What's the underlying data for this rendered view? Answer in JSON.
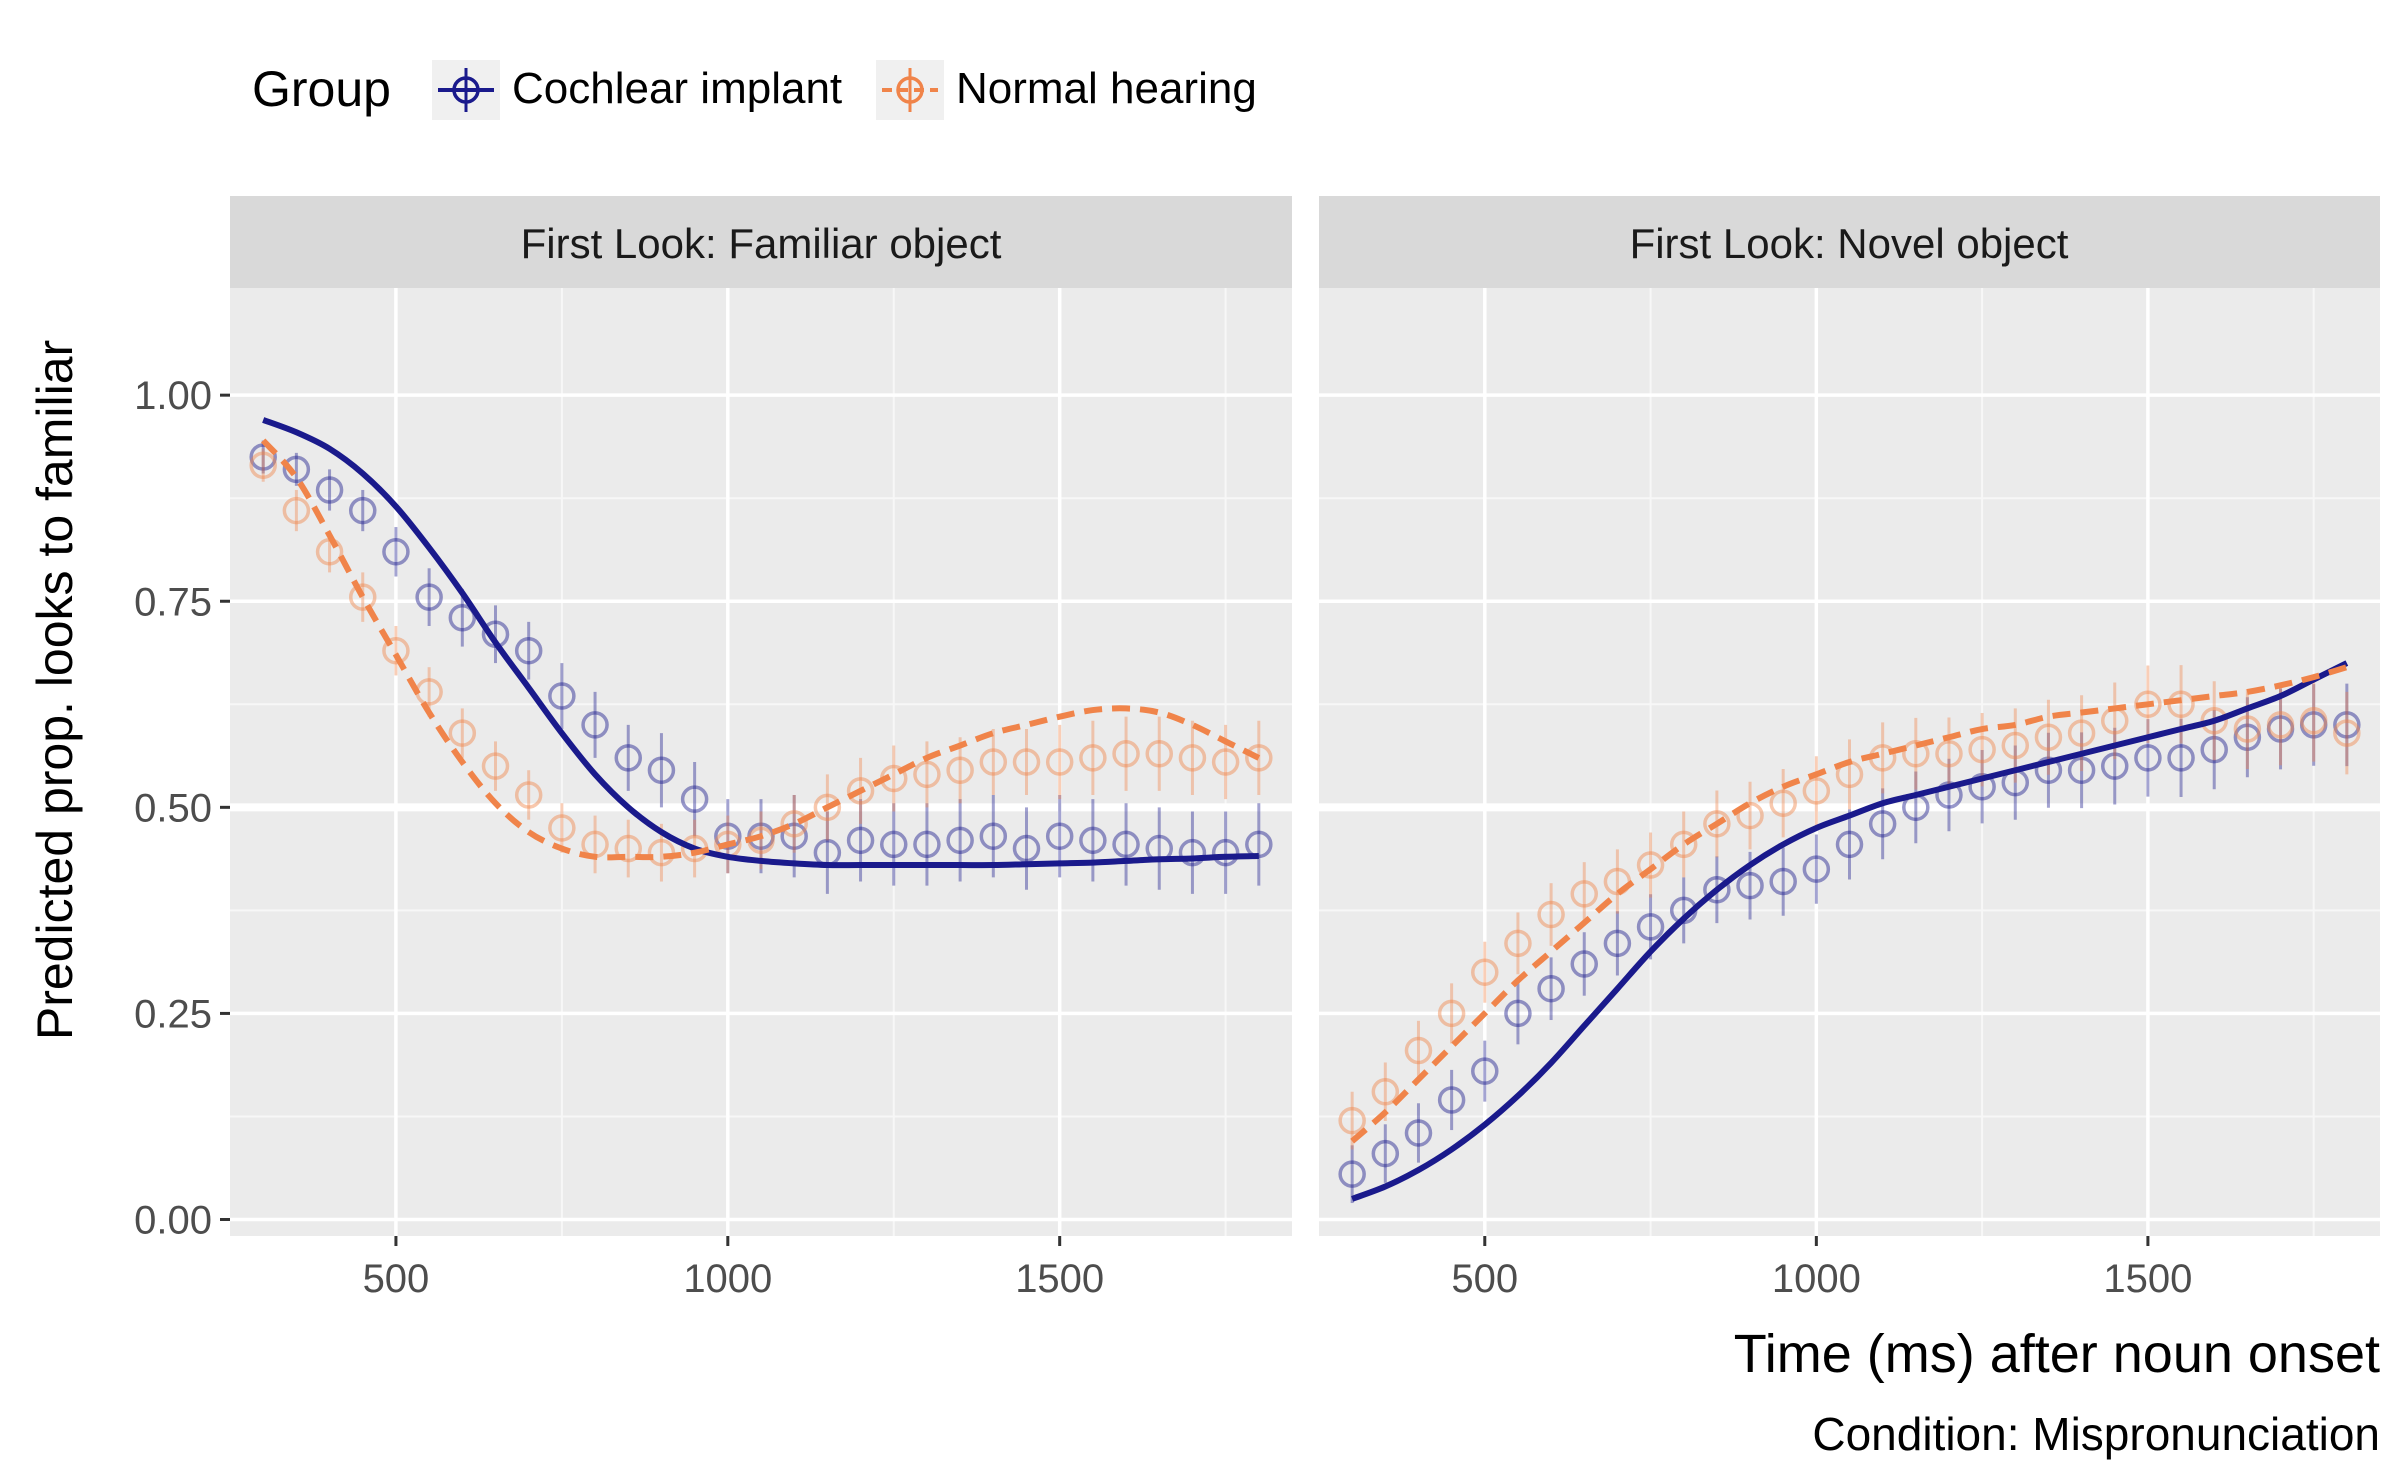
{
  "legend": {
    "title": "Group",
    "items": [
      {
        "label": "Cochlear implant",
        "color": "#1a1a8c",
        "dash": "solid"
      },
      {
        "label": "Normal hearing",
        "color": "#f0844a",
        "dash": "dashed"
      }
    ]
  },
  "ylabel": "Predicted prop. looks to familiar",
  "xlabel": "Time (ms) after noun onset",
  "caption": "Condition: Mispronunciation",
  "chart_data": [
    {
      "type": "line",
      "panel": "First Look: Familiar object",
      "xlim": [
        250,
        1850
      ],
      "ylim": [
        -0.02,
        1.13
      ],
      "xticks": [
        500,
        1000,
        1500
      ],
      "xtick_labels": [
        "500",
        "1000",
        "1500"
      ],
      "yticks": [
        0,
        0.25,
        0.5,
        0.75,
        1.0
      ],
      "ytick_labels": [
        "0.00",
        "0.25",
        "0.50",
        "0.75",
        "1.00"
      ],
      "grid": true,
      "observed": [
        {
          "name": "Cochlear implant",
          "x": [
            300,
            350,
            400,
            450,
            500,
            550,
            600,
            650,
            700,
            750,
            800,
            850,
            900,
            950,
            1000,
            1050,
            1100,
            1150,
            1200,
            1250,
            1300,
            1350,
            1400,
            1450,
            1500,
            1550,
            1600,
            1650,
            1700,
            1750,
            1800
          ],
          "y": [
            0.925,
            0.91,
            0.885,
            0.86,
            0.81,
            0.755,
            0.73,
            0.71,
            0.69,
            0.635,
            0.6,
            0.56,
            0.545,
            0.51,
            0.465,
            0.465,
            0.465,
            0.445,
            0.46,
            0.455,
            0.455,
            0.46,
            0.465,
            0.45,
            0.465,
            0.46,
            0.455,
            0.45,
            0.445,
            0.445,
            0.455
          ],
          "err": [
            0.02,
            0.02,
            0.025,
            0.025,
            0.03,
            0.035,
            0.035,
            0.035,
            0.035,
            0.04,
            0.04,
            0.04,
            0.045,
            0.045,
            0.045,
            0.045,
            0.05,
            0.05,
            0.05,
            0.05,
            0.05,
            0.05,
            0.05,
            0.05,
            0.05,
            0.05,
            0.05,
            0.05,
            0.05,
            0.05,
            0.05
          ]
        },
        {
          "name": "Normal hearing",
          "x": [
            300,
            350,
            400,
            450,
            500,
            550,
            600,
            650,
            700,
            750,
            800,
            850,
            900,
            950,
            1000,
            1050,
            1100,
            1150,
            1200,
            1250,
            1300,
            1350,
            1400,
            1450,
            1500,
            1550,
            1600,
            1650,
            1700,
            1750,
            1800
          ],
          "y": [
            0.915,
            0.86,
            0.81,
            0.755,
            0.69,
            0.64,
            0.59,
            0.55,
            0.515,
            0.475,
            0.455,
            0.45,
            0.445,
            0.45,
            0.455,
            0.46,
            0.48,
            0.5,
            0.52,
            0.535,
            0.54,
            0.545,
            0.555,
            0.555,
            0.555,
            0.56,
            0.565,
            0.565,
            0.56,
            0.555,
            0.56
          ],
          "err": [
            0.02,
            0.025,
            0.025,
            0.03,
            0.03,
            0.03,
            0.03,
            0.03,
            0.03,
            0.03,
            0.035,
            0.035,
            0.035,
            0.035,
            0.035,
            0.035,
            0.035,
            0.04,
            0.04,
            0.04,
            0.04,
            0.04,
            0.04,
            0.04,
            0.045,
            0.045,
            0.045,
            0.045,
            0.045,
            0.045,
            0.045
          ]
        }
      ],
      "fitted": [
        {
          "name": "Cochlear implant",
          "x": [
            300,
            350,
            400,
            450,
            500,
            550,
            600,
            650,
            700,
            750,
            800,
            850,
            900,
            950,
            1000,
            1050,
            1100,
            1150,
            1200,
            1250,
            1300,
            1350,
            1400,
            1450,
            1500,
            1550,
            1600,
            1650,
            1700,
            1750,
            1800
          ],
          "y": [
            0.97,
            0.955,
            0.935,
            0.905,
            0.865,
            0.815,
            0.76,
            0.7,
            0.645,
            0.59,
            0.54,
            0.5,
            0.47,
            0.45,
            0.44,
            0.435,
            0.432,
            0.43,
            0.43,
            0.43,
            0.43,
            0.43,
            0.43,
            0.431,
            0.432,
            0.433,
            0.435,
            0.437,
            0.438,
            0.44,
            0.441
          ]
        },
        {
          "name": "Normal hearing",
          "x": [
            300,
            350,
            400,
            450,
            500,
            550,
            600,
            650,
            700,
            750,
            800,
            850,
            900,
            950,
            1000,
            1050,
            1100,
            1150,
            1200,
            1250,
            1300,
            1350,
            1400,
            1450,
            1500,
            1550,
            1600,
            1650,
            1700,
            1750,
            1800
          ],
          "y": [
            0.945,
            0.9,
            0.83,
            0.755,
            0.685,
            0.615,
            0.555,
            0.505,
            0.47,
            0.45,
            0.44,
            0.44,
            0.44,
            0.445,
            0.455,
            0.465,
            0.48,
            0.5,
            0.52,
            0.54,
            0.56,
            0.575,
            0.59,
            0.6,
            0.61,
            0.618,
            0.62,
            0.615,
            0.6,
            0.58,
            0.56
          ]
        }
      ]
    },
    {
      "type": "line",
      "panel": "First Look: Novel object",
      "xlim": [
        250,
        1850
      ],
      "ylim": [
        -0.02,
        1.13
      ],
      "xticks": [
        500,
        1000,
        1500
      ],
      "xtick_labels": [
        "500",
        "1000",
        "1500"
      ],
      "yticks": [
        0,
        0.25,
        0.5,
        0.75,
        1.0
      ],
      "grid": true,
      "observed": [
        {
          "name": "Cochlear implant",
          "x": [
            300,
            350,
            400,
            450,
            500,
            550,
            600,
            650,
            700,
            750,
            800,
            850,
            900,
            950,
            1000,
            1050,
            1100,
            1150,
            1200,
            1250,
            1300,
            1350,
            1400,
            1450,
            1500,
            1550,
            1600,
            1650,
            1700,
            1750,
            1800
          ],
          "y": [
            0.055,
            0.08,
            0.105,
            0.145,
            0.18,
            0.25,
            0.28,
            0.31,
            0.335,
            0.355,
            0.375,
            0.4,
            0.405,
            0.41,
            0.425,
            0.455,
            0.48,
            0.5,
            0.515,
            0.525,
            0.53,
            0.545,
            0.545,
            0.55,
            0.56,
            0.56,
            0.57,
            0.585,
            0.595,
            0.6,
            0.6
          ]
        },
        {
          "name": "Normal hearing",
          "x": [
            300,
            350,
            400,
            450,
            500,
            550,
            600,
            650,
            700,
            750,
            800,
            850,
            900,
            950,
            1000,
            1050,
            1100,
            1150,
            1200,
            1250,
            1300,
            1350,
            1400,
            1450,
            1500,
            1550,
            1600,
            1650,
            1700,
            1750,
            1800
          ],
          "y": [
            0.12,
            0.155,
            0.205,
            0.25,
            0.3,
            0.335,
            0.37,
            0.395,
            0.41,
            0.43,
            0.455,
            0.48,
            0.49,
            0.505,
            0.52,
            0.54,
            0.56,
            0.565,
            0.565,
            0.57,
            0.575,
            0.585,
            0.59,
            0.605,
            0.625,
            0.625,
            0.605,
            0.595,
            0.6,
            0.605,
            0.59
          ]
        }
      ],
      "fitted": [
        {
          "name": "Cochlear implant",
          "x": [
            300,
            350,
            400,
            450,
            500,
            550,
            600,
            650,
            700,
            750,
            800,
            850,
            900,
            950,
            1000,
            1050,
            1100,
            1150,
            1200,
            1250,
            1300,
            1350,
            1400,
            1450,
            1500,
            1550,
            1600,
            1650,
            1700,
            1750,
            1800
          ],
          "y": [
            0.025,
            0.04,
            0.06,
            0.085,
            0.115,
            0.15,
            0.19,
            0.235,
            0.28,
            0.325,
            0.365,
            0.4,
            0.43,
            0.455,
            0.475,
            0.49,
            0.505,
            0.515,
            0.525,
            0.535,
            0.545,
            0.555,
            0.565,
            0.575,
            0.585,
            0.595,
            0.605,
            0.62,
            0.635,
            0.655,
            0.675
          ]
        },
        {
          "name": "Normal hearing",
          "x": [
            300,
            350,
            400,
            450,
            500,
            550,
            600,
            650,
            700,
            750,
            800,
            850,
            900,
            950,
            1000,
            1050,
            1100,
            1150,
            1200,
            1250,
            1300,
            1350,
            1400,
            1450,
            1500,
            1550,
            1600,
            1650,
            1700,
            1750,
            1800
          ],
          "y": [
            0.095,
            0.13,
            0.17,
            0.21,
            0.25,
            0.29,
            0.325,
            0.36,
            0.395,
            0.425,
            0.455,
            0.48,
            0.505,
            0.525,
            0.54,
            0.555,
            0.565,
            0.575,
            0.585,
            0.595,
            0.6,
            0.61,
            0.615,
            0.62,
            0.625,
            0.63,
            0.635,
            0.64,
            0.648,
            0.658,
            0.67
          ]
        }
      ]
    }
  ]
}
